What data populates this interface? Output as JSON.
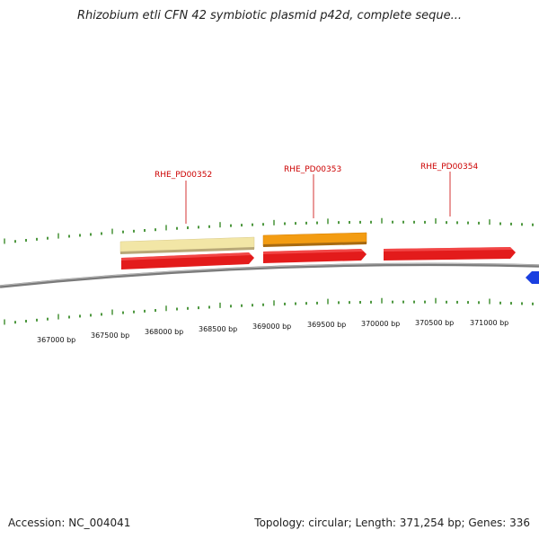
{
  "title": "Rhizobium etli CFN 42 symbiotic plasmid p42d, complete seque...",
  "footer": {
    "accession": "Accession: NC_004041",
    "summary": "Topology: circular; Length: 371,254 bp; Genes: 336"
  },
  "colors": {
    "gene": "#e31b1b",
    "gene_light": "#f0e4a0",
    "gene_orange": "#f39c12",
    "gene_blue": "#1a3fe0",
    "backbone": "#8a8a8a",
    "tick": "#3a8c2a",
    "label": "#cc0000"
  },
  "genes": [
    {
      "label": "RHE_PD00352"
    },
    {
      "label": "RHE_PD00353"
    },
    {
      "label": "RHE_PD00354"
    }
  ],
  "scale_labels": [
    "367000 bp",
    "367500 bp",
    "368000 bp",
    "368500 bp",
    "369000 bp",
    "369500 bp",
    "370000 bp",
    "370500 bp",
    "371000 bp"
  ]
}
